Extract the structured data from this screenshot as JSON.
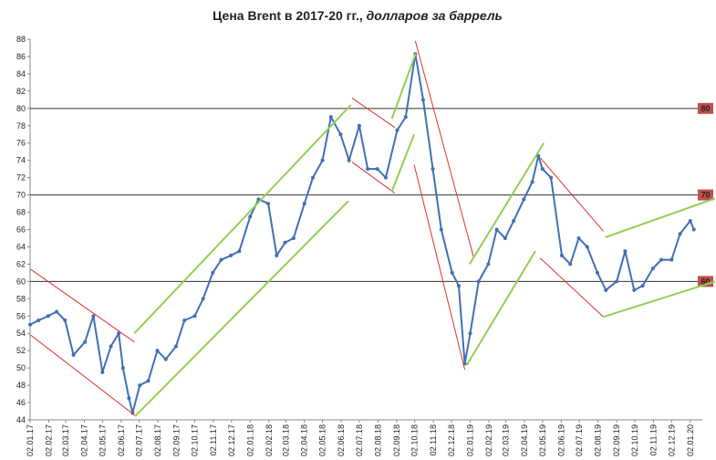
{
  "chart_data": {
    "type": "line",
    "title": "Цена Brent в 2017-20 гг.,",
    "subtitle": "долларов за баррель",
    "x": [
      "2017-01-02",
      "2017-01-16",
      "2017-02-01",
      "2017-02-15",
      "2017-03-01",
      "2017-03-15",
      "2017-04-03",
      "2017-04-17",
      "2017-05-02",
      "2017-05-16",
      "2017-05-29",
      "2017-06-05",
      "2017-06-15",
      "2017-06-21",
      "2017-07-03",
      "2017-07-17",
      "2017-08-01",
      "2017-08-15",
      "2017-09-01",
      "2017-09-15",
      "2017-10-02",
      "2017-10-16",
      "2017-11-01",
      "2017-11-15",
      "2017-12-01",
      "2017-12-15",
      "2018-01-02",
      "2018-01-16",
      "2018-02-01",
      "2018-02-15",
      "2018-03-01",
      "2018-03-15",
      "2018-04-02",
      "2018-04-16",
      "2018-05-02",
      "2018-05-16",
      "2018-06-01",
      "2018-06-15",
      "2018-07-02",
      "2018-07-16",
      "2018-08-01",
      "2018-08-15",
      "2018-09-03",
      "2018-09-17",
      "2018-10-03",
      "2018-10-16",
      "2018-11-01",
      "2018-11-15",
      "2018-12-03",
      "2018-12-14",
      "2018-12-24",
      "2019-01-02",
      "2019-01-16",
      "2019-02-01",
      "2019-02-15",
      "2019-03-01",
      "2019-03-15",
      "2019-04-01",
      "2019-04-15",
      "2019-04-25",
      "2019-05-02",
      "2019-05-16",
      "2019-06-03",
      "2019-06-17",
      "2019-07-01",
      "2019-07-15",
      "2019-08-01",
      "2019-08-15",
      "2019-09-02",
      "2019-09-16",
      "2019-10-01",
      "2019-10-15",
      "2019-11-01",
      "2019-11-15",
      "2019-12-02",
      "2019-12-16",
      "2020-01-02",
      "2020-01-08"
    ],
    "series": [
      {
        "color": "#3f6fb8",
        "values": [
          55,
          55.5,
          56,
          56.5,
          55.5,
          51.5,
          53,
          56,
          49.5,
          52.5,
          54,
          50,
          46.5,
          44.8,
          48,
          48.5,
          52,
          51,
          52.5,
          55.5,
          56,
          58,
          61,
          62.5,
          63,
          63.5,
          67.5,
          69.5,
          69,
          63,
          64.5,
          65,
          69,
          72,
          74,
          79,
          77,
          74,
          78,
          73,
          73,
          72,
          77.5,
          79,
          86.3,
          81,
          73,
          66,
          61,
          59.5,
          50.5,
          54,
          60,
          62,
          66,
          65,
          67,
          69.5,
          71.5,
          74.5,
          73,
          72,
          63,
          62,
          65,
          64,
          61,
          59,
          60,
          63.5,
          59,
          59.5,
          61.5,
          62.5,
          62.5,
          65.5,
          67,
          66
        ]
      }
    ],
    "xlim": [
      "2017-01-02",
      "2020-01-22"
    ],
    "ylim": [
      44,
      88
    ],
    "yticks": [
      44,
      46,
      48,
      50,
      52,
      54,
      56,
      58,
      60,
      62,
      64,
      66,
      68,
      70,
      72,
      74,
      76,
      78,
      80,
      82,
      84,
      86,
      88
    ],
    "xticks": [
      {
        "value": "2017-01-02",
        "label": "02.01.17"
      },
      {
        "value": "2017-02-02",
        "label": "02.02.17"
      },
      {
        "value": "2017-03-02",
        "label": "02.03.17"
      },
      {
        "value": "2017-04-02",
        "label": "02.04.17"
      },
      {
        "value": "2017-05-02",
        "label": "02.05.17"
      },
      {
        "value": "2017-06-02",
        "label": "02.06.17"
      },
      {
        "value": "2017-07-02",
        "label": "02.07.17"
      },
      {
        "value": "2017-08-02",
        "label": "02.08.17"
      },
      {
        "value": "2017-09-02",
        "label": "02.09.17"
      },
      {
        "value": "2017-10-02",
        "label": "02.10.17"
      },
      {
        "value": "2017-11-02",
        "label": "02.11.17"
      },
      {
        "value": "2017-12-02",
        "label": "02.12.17"
      },
      {
        "value": "2018-01-02",
        "label": "02.01.18"
      },
      {
        "value": "2018-02-02",
        "label": "02.02.18"
      },
      {
        "value": "2018-03-02",
        "label": "02.03.18"
      },
      {
        "value": "2018-04-02",
        "label": "02.04.18"
      },
      {
        "value": "2018-05-02",
        "label": "02.05.18"
      },
      {
        "value": "2018-06-02",
        "label": "02.06.18"
      },
      {
        "value": "2018-07-02",
        "label": "02.07.18"
      },
      {
        "value": "2018-08-02",
        "label": "02.08.18"
      },
      {
        "value": "2018-09-02",
        "label": "02.09.18"
      },
      {
        "value": "2018-10-02",
        "label": "02.10.18"
      },
      {
        "value": "2018-11-02",
        "label": "02.11.18"
      },
      {
        "value": "2018-12-02",
        "label": "02.12.18"
      },
      {
        "value": "2019-01-02",
        "label": "02.01.19"
      },
      {
        "value": "2019-02-02",
        "label": "02.02.19"
      },
      {
        "value": "2019-03-02",
        "label": "02.03.19"
      },
      {
        "value": "2019-04-02",
        "label": "02.04.19"
      },
      {
        "value": "2019-05-02",
        "label": "02.05.19"
      },
      {
        "value": "2019-06-02",
        "label": "02.06.19"
      },
      {
        "value": "2019-07-02",
        "label": "02.07.19"
      },
      {
        "value": "2019-08-02",
        "label": "02.08.19"
      },
      {
        "value": "2019-09-02",
        "label": "02.09.19"
      },
      {
        "value": "2019-10-02",
        "label": "02.10.19"
      },
      {
        "value": "2019-11-02",
        "label": "02.11.19"
      },
      {
        "value": "2019-12-02",
        "label": "02.12.19"
      },
      {
        "value": "2020-01-02",
        "label": "02.01.20"
      }
    ],
    "reference_lines": [
      80,
      70,
      60
    ],
    "reference_color": "#c0504d",
    "trend_lines": [
      {
        "color": "#e03030",
        "x": [
          "2017-01-03",
          "2017-06-24"
        ],
        "y": [
          61.4,
          53.0
        ]
      },
      {
        "color": "#e03030",
        "x": [
          "2017-01-03",
          "2017-06-25"
        ],
        "y": [
          53.8,
          44.5
        ]
      },
      {
        "color": "#92d050",
        "x": [
          "2017-06-24",
          "2018-06-18"
        ],
        "y": [
          54.0,
          80.4
        ]
      },
      {
        "color": "#92d050",
        "x": [
          "2017-06-25",
          "2018-06-14"
        ],
        "y": [
          44.4,
          69.3
        ]
      },
      {
        "color": "#e03030",
        "x": [
          "2018-06-20",
          "2018-08-30"
        ],
        "y": [
          81.2,
          77.8
        ]
      },
      {
        "color": "#e03030",
        "x": [
          "2018-06-20",
          "2018-08-30"
        ],
        "y": [
          73.8,
          70.2
        ]
      },
      {
        "color": "#92d050",
        "x": [
          "2018-08-25",
          "2018-10-04"
        ],
        "y": [
          78.8,
          86.4
        ]
      },
      {
        "color": "#92d050",
        "x": [
          "2018-08-25",
          "2018-10-01"
        ],
        "y": [
          70.4,
          77.0
        ]
      },
      {
        "color": "#e03030",
        "x": [
          "2018-10-03",
          "2019-01-08"
        ],
        "y": [
          87.8,
          62.7
        ]
      },
      {
        "color": "#e03030",
        "x": [
          "2018-10-01",
          "2018-12-24"
        ],
        "y": [
          73.5,
          49.8
        ]
      },
      {
        "color": "#92d050",
        "x": [
          "2018-12-27",
          "2019-04-20"
        ],
        "y": [
          50.3,
          63.5
        ]
      },
      {
        "color": "#92d050",
        "x": [
          "2019-01-01",
          "2019-05-04"
        ],
        "y": [
          62.0,
          76.0
        ]
      },
      {
        "color": "#e03030",
        "x": [
          "2019-04-28",
          "2019-08-11"
        ],
        "y": [
          74.3,
          65.8
        ]
      },
      {
        "color": "#e03030",
        "x": [
          "2019-04-28",
          "2019-08-11"
        ],
        "y": [
          62.7,
          55.9
        ]
      },
      {
        "color": "#92d050",
        "x": [
          "2019-08-14",
          "2020-02-12"
        ],
        "y": [
          65.1,
          69.6
        ]
      },
      {
        "color": "#92d050",
        "x": [
          "2019-08-11",
          "2020-02-12"
        ],
        "y": [
          55.9,
          60.0
        ]
      }
    ]
  }
}
